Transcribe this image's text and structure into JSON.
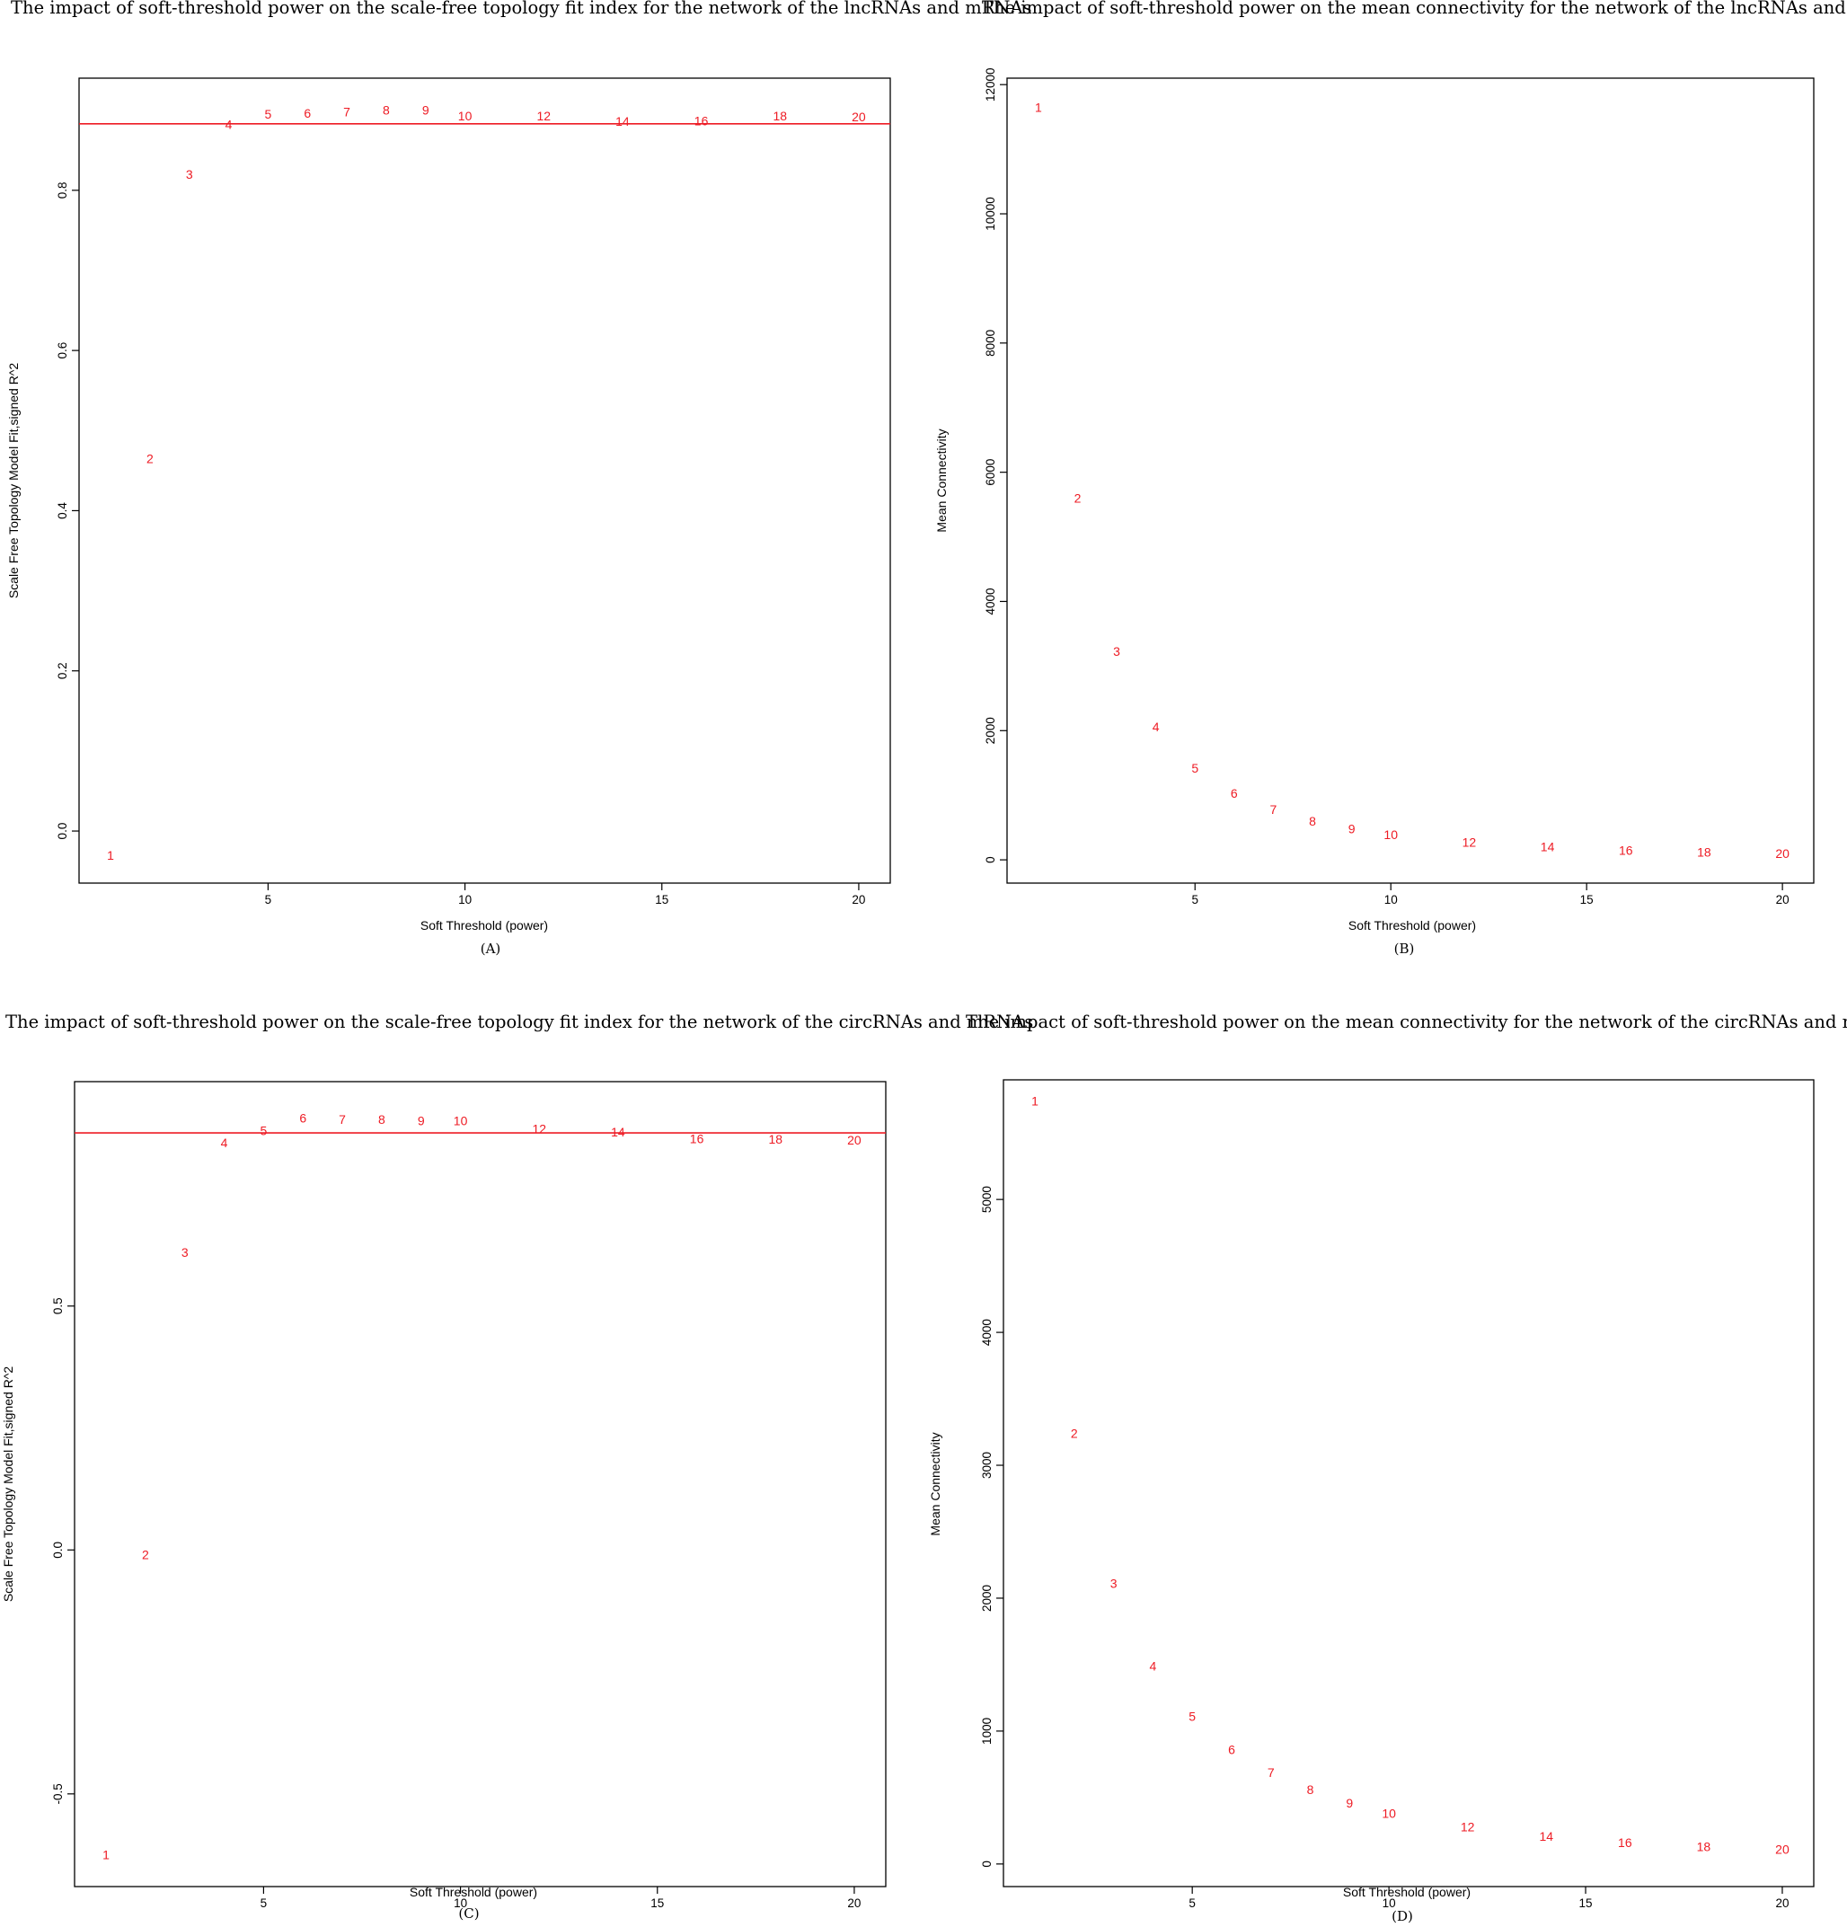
{
  "colors": {
    "points": "#ee1b24",
    "cutoff_line": "#ee1b24",
    "frame": "#000000"
  },
  "chart_data": [
    {
      "id": "A",
      "type": "scatter",
      "title": "The impact of soft-threshold power on the scale-free topology fit index for the network of the lncRNAs and mRNAs",
      "panel_label": "(A)",
      "xlabel": "Soft Threshold (power)",
      "ylabel": "Scale Free Topology Model Fit,signed R^2",
      "xlim": [
        0.2,
        20.8
      ],
      "ylim": [
        -0.065,
        0.94
      ],
      "xticks": [
        5,
        10,
        15,
        20
      ],
      "yticks": [
        0.0,
        0.2,
        0.4,
        0.6,
        0.8
      ],
      "ytick_labels": [
        "0.0",
        "0.2",
        "0.4",
        "0.6",
        "0.8"
      ],
      "hline": 0.883,
      "points": [
        {
          "x": 1,
          "y": -0.03,
          "label": "1"
        },
        {
          "x": 2,
          "y": 0.465,
          "label": "2"
        },
        {
          "x": 3,
          "y": 0.82,
          "label": "3"
        },
        {
          "x": 4,
          "y": 0.882,
          "label": "4"
        },
        {
          "x": 5,
          "y": 0.895,
          "label": "5"
        },
        {
          "x": 6,
          "y": 0.896,
          "label": "6"
        },
        {
          "x": 7,
          "y": 0.898,
          "label": "7"
        },
        {
          "x": 8,
          "y": 0.9,
          "label": "8"
        },
        {
          "x": 9,
          "y": 0.9,
          "label": "9"
        },
        {
          "x": 10,
          "y": 0.893,
          "label": "10"
        },
        {
          "x": 12,
          "y": 0.893,
          "label": "12"
        },
        {
          "x": 14,
          "y": 0.886,
          "label": "14"
        },
        {
          "x": 16,
          "y": 0.887,
          "label": "16"
        },
        {
          "x": 18,
          "y": 0.893,
          "label": "18"
        },
        {
          "x": 20,
          "y": 0.892,
          "label": "20"
        }
      ]
    },
    {
      "id": "B",
      "type": "scatter",
      "title": "The impact of soft-threshold power on the mean connectivity for the network of the lncRNAs and mRNAs",
      "panel_label": "(B)",
      "xlabel": "Soft Threshold (power)",
      "ylabel": "Mean Connectivity",
      "xlim": [
        0.2,
        20.8
      ],
      "ylim": [
        -360,
        12100
      ],
      "xticks": [
        5,
        10,
        15,
        20
      ],
      "yticks": [
        0,
        2000,
        4000,
        6000,
        8000,
        10000,
        12000
      ],
      "ytick_labels": [
        "0",
        "2000",
        "4000",
        "6000",
        "8000",
        "10000",
        "12000"
      ],
      "points": [
        {
          "x": 1,
          "y": 11650,
          "label": "1"
        },
        {
          "x": 2,
          "y": 5600,
          "label": "2"
        },
        {
          "x": 3,
          "y": 3230,
          "label": "3"
        },
        {
          "x": 4,
          "y": 2060,
          "label": "4"
        },
        {
          "x": 5,
          "y": 1420,
          "label": "5"
        },
        {
          "x": 6,
          "y": 1030,
          "label": "6"
        },
        {
          "x": 7,
          "y": 780,
          "label": "7"
        },
        {
          "x": 8,
          "y": 600,
          "label": "8"
        },
        {
          "x": 9,
          "y": 480,
          "label": "9"
        },
        {
          "x": 10,
          "y": 390,
          "label": "10"
        },
        {
          "x": 12,
          "y": 270,
          "label": "12"
        },
        {
          "x": 14,
          "y": 200,
          "label": "14"
        },
        {
          "x": 16,
          "y": 150,
          "label": "16"
        },
        {
          "x": 18,
          "y": 120,
          "label": "18"
        },
        {
          "x": 20,
          "y": 100,
          "label": "20"
        }
      ]
    },
    {
      "id": "C",
      "type": "scatter",
      "title": "The impact of soft-threshold power on the scale-free topology fit index for the network of the circRNAs and mRNAs",
      "panel_label": "(C)",
      "xlabel": "Soft Threshold (power)",
      "ylabel": "Scale Free Topology Model Fit,signed R^2",
      "xlim": [
        0.2,
        20.8
      ],
      "ylim": [
        -0.69,
        0.96
      ],
      "xticks": [
        5,
        10,
        15,
        20
      ],
      "yticks": [
        -0.5,
        0.0,
        0.5
      ],
      "ytick_labels": [
        "-0.5",
        "0.0",
        "0.5"
      ],
      "hline": 0.855,
      "points": [
        {
          "x": 1,
          "y": -0.625,
          "label": "1"
        },
        {
          "x": 2,
          "y": -0.01,
          "label": "2"
        },
        {
          "x": 3,
          "y": 0.61,
          "label": "3"
        },
        {
          "x": 4,
          "y": 0.835,
          "label": "4"
        },
        {
          "x": 5,
          "y": 0.86,
          "label": "5"
        },
        {
          "x": 6,
          "y": 0.885,
          "label": "6"
        },
        {
          "x": 7,
          "y": 0.883,
          "label": "7"
        },
        {
          "x": 8,
          "y": 0.883,
          "label": "8"
        },
        {
          "x": 9,
          "y": 0.88,
          "label": "9"
        },
        {
          "x": 10,
          "y": 0.88,
          "label": "10"
        },
        {
          "x": 12,
          "y": 0.863,
          "label": "12"
        },
        {
          "x": 14,
          "y": 0.857,
          "label": "14"
        },
        {
          "x": 16,
          "y": 0.843,
          "label": "16"
        },
        {
          "x": 18,
          "y": 0.842,
          "label": "18"
        },
        {
          "x": 20,
          "y": 0.84,
          "label": "20"
        }
      ]
    },
    {
      "id": "D",
      "type": "scatter",
      "title": "The impact of soft-threshold power on the mean connectivity for the network of the circRNAs and mRNAs",
      "panel_label": "(D)",
      "xlabel": "Soft Threshold (power)",
      "ylabel": "Mean Connectivity",
      "xlim": [
        0.2,
        20.8
      ],
      "ylim": [
        -170,
        5900
      ],
      "xticks": [
        5,
        10,
        15,
        20
      ],
      "yticks": [
        0,
        1000,
        2000,
        3000,
        4000,
        5000
      ],
      "ytick_labels": [
        "0",
        "1000",
        "2000",
        "3000",
        "4000",
        "5000"
      ],
      "points": [
        {
          "x": 1,
          "y": 5740,
          "label": "1"
        },
        {
          "x": 2,
          "y": 3240,
          "label": "2"
        },
        {
          "x": 3,
          "y": 2110,
          "label": "3"
        },
        {
          "x": 4,
          "y": 1490,
          "label": "4"
        },
        {
          "x": 5,
          "y": 1110,
          "label": "5"
        },
        {
          "x": 6,
          "y": 860,
          "label": "6"
        },
        {
          "x": 7,
          "y": 690,
          "label": "7"
        },
        {
          "x": 8,
          "y": 560,
          "label": "8"
        },
        {
          "x": 9,
          "y": 460,
          "label": "9"
        },
        {
          "x": 10,
          "y": 380,
          "label": "10"
        },
        {
          "x": 12,
          "y": 280,
          "label": "12"
        },
        {
          "x": 14,
          "y": 210,
          "label": "14"
        },
        {
          "x": 16,
          "y": 160,
          "label": "16"
        },
        {
          "x": 18,
          "y": 130,
          "label": "18"
        },
        {
          "x": 20,
          "y": 110,
          "label": "20"
        }
      ]
    }
  ]
}
